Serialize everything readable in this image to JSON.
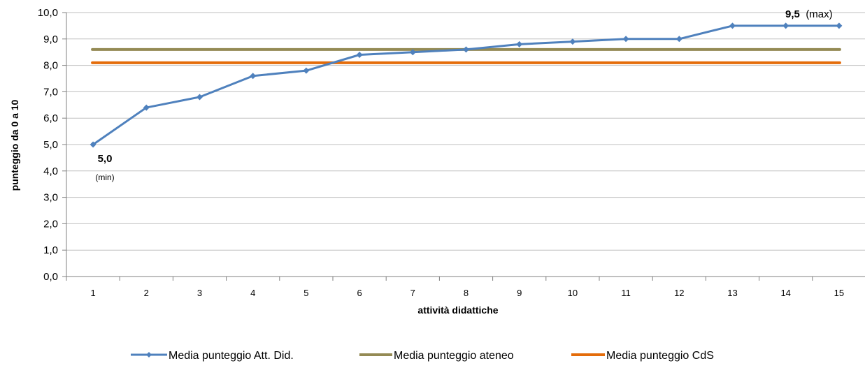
{
  "chart_data": {
    "type": "line",
    "xlabel": "attività didattiche",
    "ylabel": "punteggio da 0 a 10",
    "ylim": [
      0,
      10
    ],
    "y_ticks": [
      "0,0",
      "1,0",
      "2,0",
      "3,0",
      "4,0",
      "5,0",
      "6,0",
      "7,0",
      "8,0",
      "9,0",
      "10,0"
    ],
    "categories": [
      "1",
      "2",
      "3",
      "4",
      "5",
      "6",
      "7",
      "8",
      "9",
      "10",
      "11",
      "12",
      "13",
      "14",
      "15"
    ],
    "grid": "horizontal",
    "legend_position": "bottom",
    "series": [
      {
        "name": "Media punteggio Att. Did.",
        "color": "#4F81BD",
        "marker": "diamond",
        "values": [
          5.0,
          6.4,
          6.8,
          7.6,
          7.8,
          8.4,
          8.5,
          8.6,
          8.8,
          8.9,
          9.0,
          9.0,
          9.5,
          9.5,
          9.5
        ]
      },
      {
        "name": "Media punteggio ateneo",
        "color": "#948A54",
        "values": [
          8.6,
          8.6,
          8.6,
          8.6,
          8.6,
          8.6,
          8.6,
          8.6,
          8.6,
          8.6,
          8.6,
          8.6,
          8.6,
          8.6,
          8.6
        ]
      },
      {
        "name": "Media punteggio CdS",
        "color": "#E46C0A",
        "values": [
          8.1,
          8.1,
          8.1,
          8.1,
          8.1,
          8.1,
          8.1,
          8.1,
          8.1,
          8.1,
          8.1,
          8.1,
          8.1,
          8.1,
          8.1
        ]
      }
    ],
    "annotations": {
      "min_value": "5,0",
      "min_label": "(min)",
      "max_value": "9,5",
      "max_label": "(max)"
    }
  }
}
